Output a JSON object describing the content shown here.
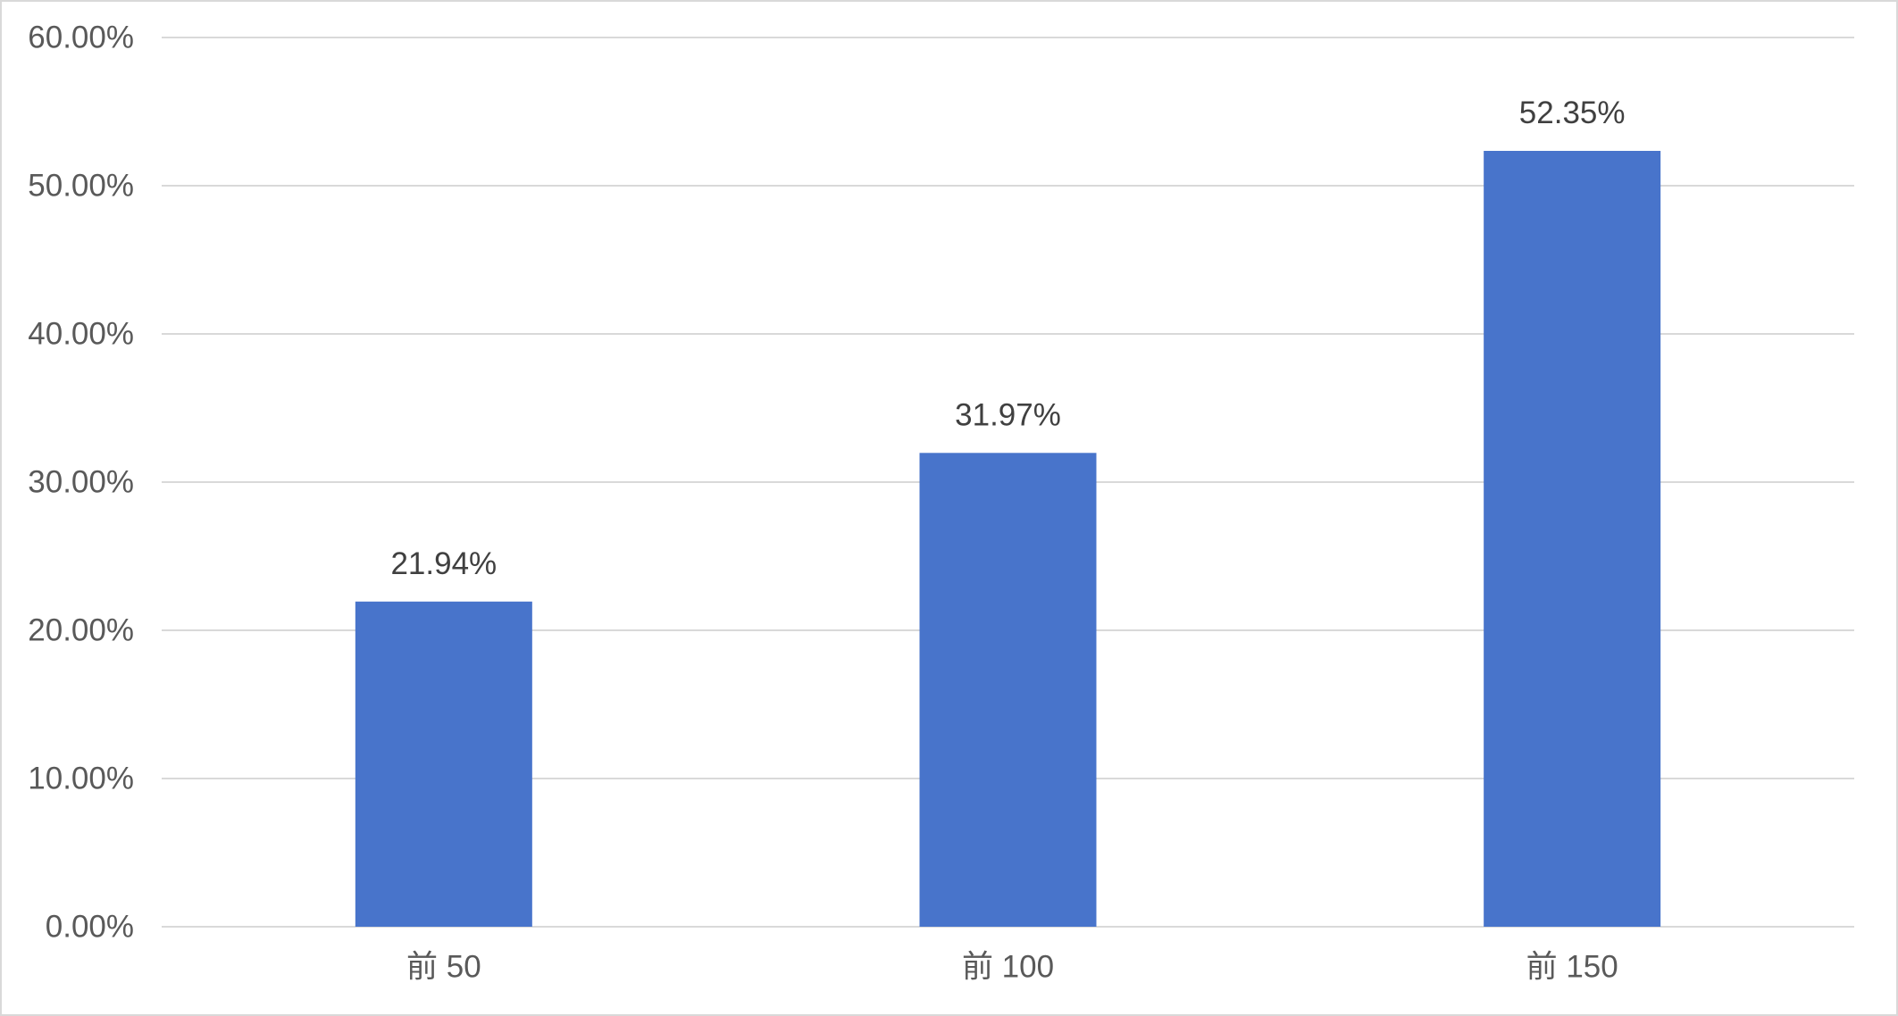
{
  "chart_data": {
    "type": "bar",
    "categories": [
      "前 50",
      "前 100",
      "前 150"
    ],
    "values": [
      21.94,
      31.97,
      52.35
    ],
    "value_labels": [
      "21.94%",
      "31.97%",
      "52.35%"
    ],
    "color": "#4874cb",
    "ylim": [
      0,
      60
    ],
    "yticks": [
      {
        "value": 0,
        "label": "0.00%"
      },
      {
        "value": 10,
        "label": "10.00%"
      },
      {
        "value": 20,
        "label": "20.00%"
      },
      {
        "value": 30,
        "label": "30.00%"
      },
      {
        "value": 40,
        "label": "40.00%"
      },
      {
        "value": 50,
        "label": "50.00%"
      },
      {
        "value": 60,
        "label": "60.00%"
      }
    ],
    "grid": true
  }
}
